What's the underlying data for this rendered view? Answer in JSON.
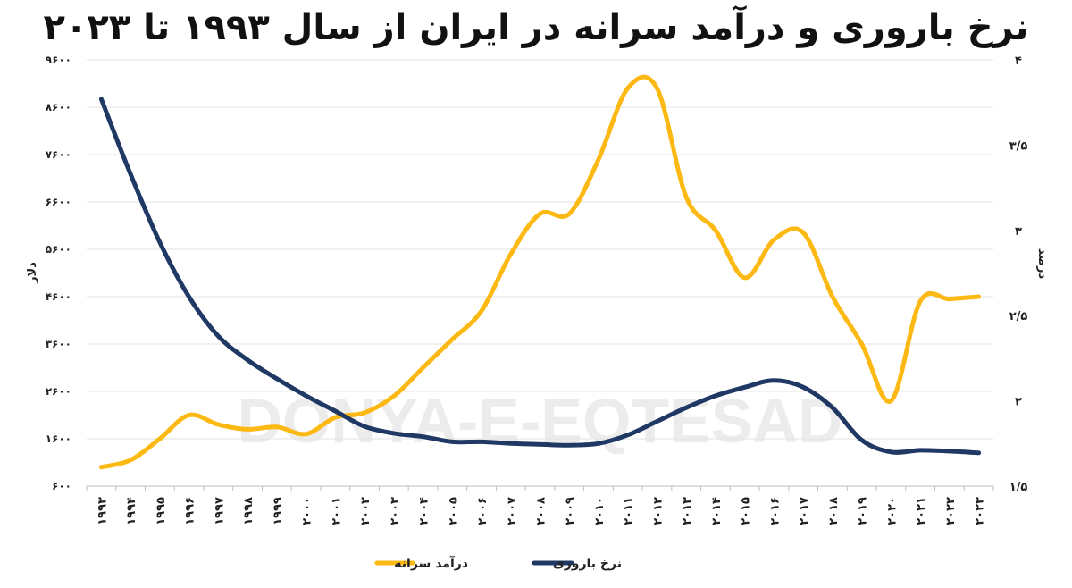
{
  "title": "نرخ باروری و درآمد سرانه در ایران از سال ۱۹۹۳ تا ۲۰۲۳",
  "watermark": "DONYA-E-EQTESAD",
  "chart_data": {
    "type": "line",
    "title": "نرخ باروری و درآمد سرانه در ایران از سال ۱۹۹۳ تا ۲۰۲۳",
    "x": [
      "۱۹۹۳",
      "۱۹۹۴",
      "۱۹۹۵",
      "۱۹۹۶",
      "۱۹۹۷",
      "۱۹۹۸",
      "۱۹۹۹",
      "۲۰۰۰",
      "۲۰۰۱",
      "۲۰۰۲",
      "۲۰۰۳",
      "۲۰۰۴",
      "۲۰۰۵",
      "۲۰۰۶",
      "۲۰۰۷",
      "۲۰۰۸",
      "۲۰۰۹",
      "۲۰۱۰",
      "۲۰۱۱",
      "۲۰۱۲",
      "۲۰۱۳",
      "۲۰۱۴",
      "۲۰۱۵",
      "۲۰۱۶",
      "۲۰۱۷",
      "۲۰۱۸",
      "۲۰۱۹",
      "۲۰۲۰",
      "۲۰۲۱",
      "۲۰۲۲",
      "۲۰۲۳"
    ],
    "left_axis": {
      "label": "دلار",
      "ylim": [
        600,
        9600
      ],
      "ticks": [
        "۶۰۰",
        "۱۶۰۰",
        "۲۶۰۰",
        "۳۶۰۰",
        "۴۶۰۰",
        "۵۶۰۰",
        "۶۶۰۰",
        "۷۶۰۰",
        "۸۶۰۰",
        "۹۶۰۰"
      ],
      "tick_values": [
        600,
        1600,
        2600,
        3600,
        4600,
        5600,
        6600,
        7600,
        8600,
        9600
      ]
    },
    "right_axis": {
      "label": "درصد",
      "ylim": [
        1.5,
        4
      ],
      "ticks": [
        "۱/۵",
        "۲",
        "۲/۵",
        "۳",
        "۳/۵",
        "۴"
      ],
      "tick_values": [
        1.5,
        2,
        2.5,
        3,
        3.5,
        4
      ]
    },
    "grid": true,
    "legend_position": "bottom",
    "series": [
      {
        "name": "درآمد سرانه",
        "axis": "left",
        "color": "#FDB913",
        "values": [
          1000,
          1150,
          1600,
          2100,
          1900,
          1800,
          1850,
          1700,
          2050,
          2150,
          2500,
          3100,
          3700,
          4300,
          5500,
          6350,
          6350,
          7500,
          9000,
          9000,
          6700,
          6000,
          5000,
          5800,
          5950,
          4600,
          3600,
          2400,
          4500,
          4550,
          4600
        ]
      },
      {
        "name": "نرخ باروری",
        "axis": "right",
        "color": "#1F3864",
        "values": [
          3.77,
          3.33,
          2.93,
          2.61,
          2.38,
          2.24,
          2.13,
          2.03,
          1.94,
          1.85,
          1.81,
          1.79,
          1.76,
          1.76,
          1.75,
          1.745,
          1.74,
          1.75,
          1.8,
          1.88,
          1.96,
          2.03,
          2.08,
          2.12,
          2.08,
          1.96,
          1.77,
          1.7,
          1.71,
          1.705,
          1.695
        ]
      }
    ]
  }
}
